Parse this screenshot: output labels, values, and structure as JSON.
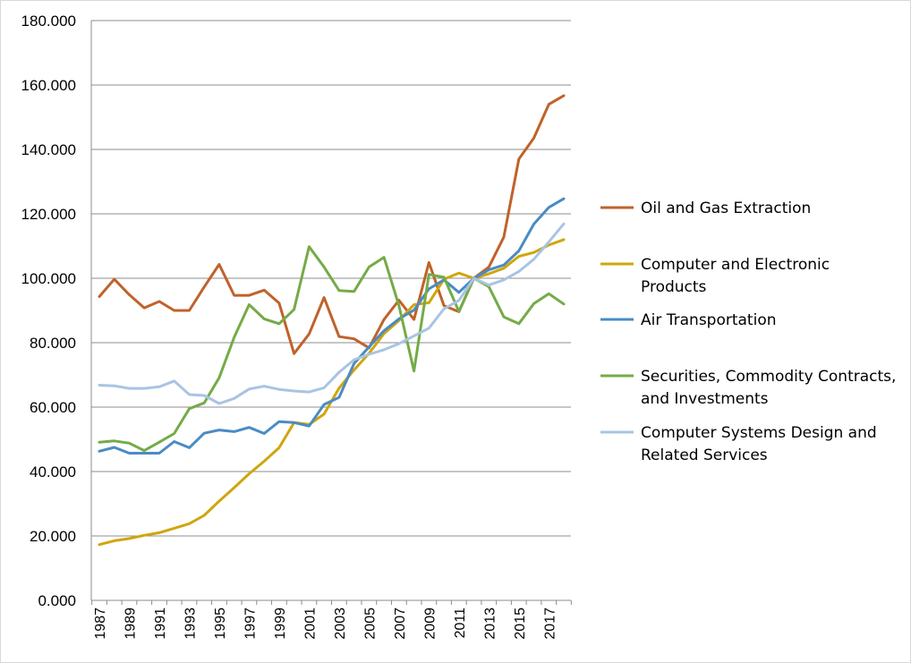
{
  "chart_data": {
    "type": "line",
    "title": "",
    "xlabel": "",
    "ylabel": "",
    "ylim": [
      0,
      180
    ],
    "y_ticks": [
      "0.000",
      "20.000",
      "40.000",
      "60.000",
      "80.000",
      "100.000",
      "120.000",
      "140.000",
      "160.000",
      "180.000"
    ],
    "x": [
      1987,
      1988,
      1989,
      1990,
      1991,
      1992,
      1993,
      1994,
      1995,
      1996,
      1997,
      1998,
      1999,
      2000,
      2001,
      2002,
      2003,
      2004,
      2005,
      2006,
      2007,
      2008,
      2009,
      2010,
      2011,
      2012,
      2013,
      2014,
      2015,
      2016,
      2017,
      2018
    ],
    "x_tick_labels": [
      "1987",
      "1989",
      "1991",
      "1993",
      "1995",
      "1997",
      "1999",
      "2001",
      "2003",
      "2005",
      "2007",
      "2009",
      "2011",
      "2013",
      "2015",
      "2017"
    ],
    "grid": "horizontal",
    "legend_position": "right",
    "series": [
      {
        "name": "Oil and Gas Extraction",
        "color": "#C0622A",
        "legend_lines": [
          "Oil and Gas Extraction"
        ],
        "values": [
          94.3,
          99.7,
          94.9,
          90.8,
          92.8,
          90.0,
          90.0,
          97.3,
          104.3,
          94.7,
          94.7,
          96.3,
          92.3,
          76.6,
          82.7,
          94.0,
          81.9,
          81.2,
          78.4,
          87.2,
          93.2,
          87.2,
          104.9,
          91.5,
          89.6,
          100.0,
          103.5,
          112.8,
          137.0,
          143.5,
          154.0,
          156.7
        ]
      },
      {
        "name": "Computer and Electronic Products",
        "color": "#CFA60C",
        "legend_lines": [
          "Computer and Electronic",
          "Products"
        ],
        "values": [
          17.3,
          18.5,
          19.2,
          20.2,
          21.0,
          22.4,
          23.8,
          26.4,
          30.8,
          35.0,
          39.3,
          43.2,
          47.4,
          55.2,
          54.6,
          57.8,
          65.9,
          71.5,
          76.7,
          82.8,
          86.9,
          91.8,
          92.4,
          99.7,
          101.6,
          100.0,
          101.4,
          103.1,
          106.8,
          108.0,
          110.3,
          112.0
        ]
      },
      {
        "name": "Air Transportation",
        "color": "#4A8BC4",
        "legend_lines": [
          "Air Transportation"
        ],
        "values": [
          46.3,
          47.5,
          45.7,
          45.7,
          45.7,
          49.3,
          47.4,
          51.9,
          52.9,
          52.4,
          53.7,
          51.8,
          55.5,
          55.2,
          54.1,
          60.8,
          63.0,
          73.5,
          78.7,
          83.7,
          87.4,
          90.1,
          96.7,
          99.5,
          95.6,
          100.0,
          102.6,
          104.1,
          108.5,
          116.8,
          122.0,
          124.7
        ]
      },
      {
        "name": "Securities, Commodity Contracts, and Investments",
        "color": "#74AB47",
        "legend_lines": [
          "Securities, Commodity Contracts,",
          "and Investments"
        ],
        "values": [
          49.1,
          49.5,
          48.8,
          46.5,
          49.1,
          51.8,
          59.5,
          61.3,
          69.1,
          81.7,
          91.8,
          87.4,
          85.9,
          90.3,
          109.8,
          103.5,
          96.2,
          95.9,
          103.5,
          106.5,
          91.5,
          71.2,
          101.2,
          100.3,
          89.7,
          100.0,
          97.4,
          88.0,
          85.9,
          92.1,
          95.2,
          92.0
        ]
      },
      {
        "name": "Computer Systems Design and Related Services",
        "color": "#A9C4E3",
        "legend_lines": [
          "Computer Systems Design and",
          "Related Services"
        ],
        "values": [
          66.8,
          66.6,
          65.8,
          65.8,
          66.3,
          68.1,
          63.9,
          63.6,
          61.1,
          62.7,
          65.6,
          66.5,
          65.5,
          65.0,
          64.7,
          66.0,
          70.8,
          74.7,
          76.4,
          77.8,
          79.7,
          82.1,
          84.5,
          90.5,
          93.1,
          100.0,
          97.9,
          99.5,
          102.1,
          105.9,
          111.3,
          116.9
        ]
      }
    ]
  }
}
